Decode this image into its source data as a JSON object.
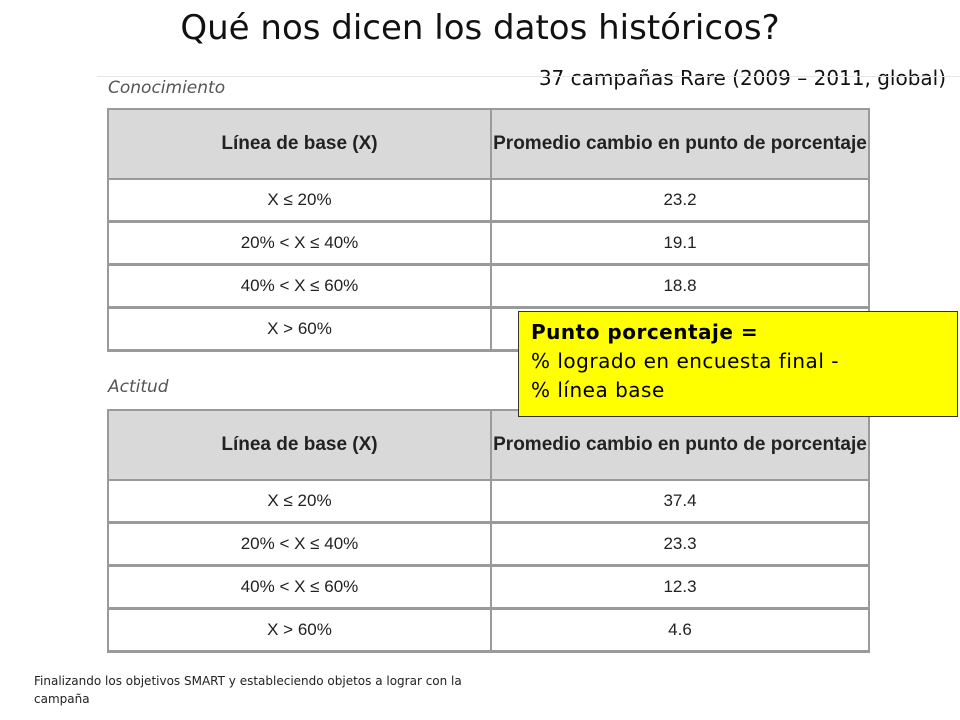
{
  "title": "Qué nos dicen los datos históricos?",
  "subtitle": "37 campañas Rare (2009 – 2011, global)",
  "sections": [
    {
      "label": "Conocimiento",
      "headers": [
        "Línea de base (X)",
        "Promedio cambio en punto de porcentaje"
      ],
      "rows": [
        {
          "baseline": "X ≤ 20%",
          "value": "23.2"
        },
        {
          "baseline": "20% < X ≤ 40%",
          "value": "19.1"
        },
        {
          "baseline": "40% < X ≤ 60%",
          "value": "18.8"
        },
        {
          "baseline": "X > 60%",
          "value": ""
        }
      ]
    },
    {
      "label": "Actitud",
      "headers": [
        "Línea de base (X)",
        "Promedio cambio en punto de porcentaje"
      ],
      "rows": [
        {
          "baseline": "X ≤ 20%",
          "value": "37.4"
        },
        {
          "baseline": "20% < X ≤ 40%",
          "value": "23.3"
        },
        {
          "baseline": "40% < X ≤ 60%",
          "value": "12.3"
        },
        {
          "baseline": "X > 60%",
          "value": "4.6"
        }
      ]
    }
  ],
  "callout": {
    "line1": "Punto porcentaje =",
    "line2": "% logrado en encuesta final -",
    "line3": "% línea base",
    "background": "#ffff00"
  },
  "footer": "Finalizando los objetivos SMART y estableciendo objetos a lograr con la campaña"
}
